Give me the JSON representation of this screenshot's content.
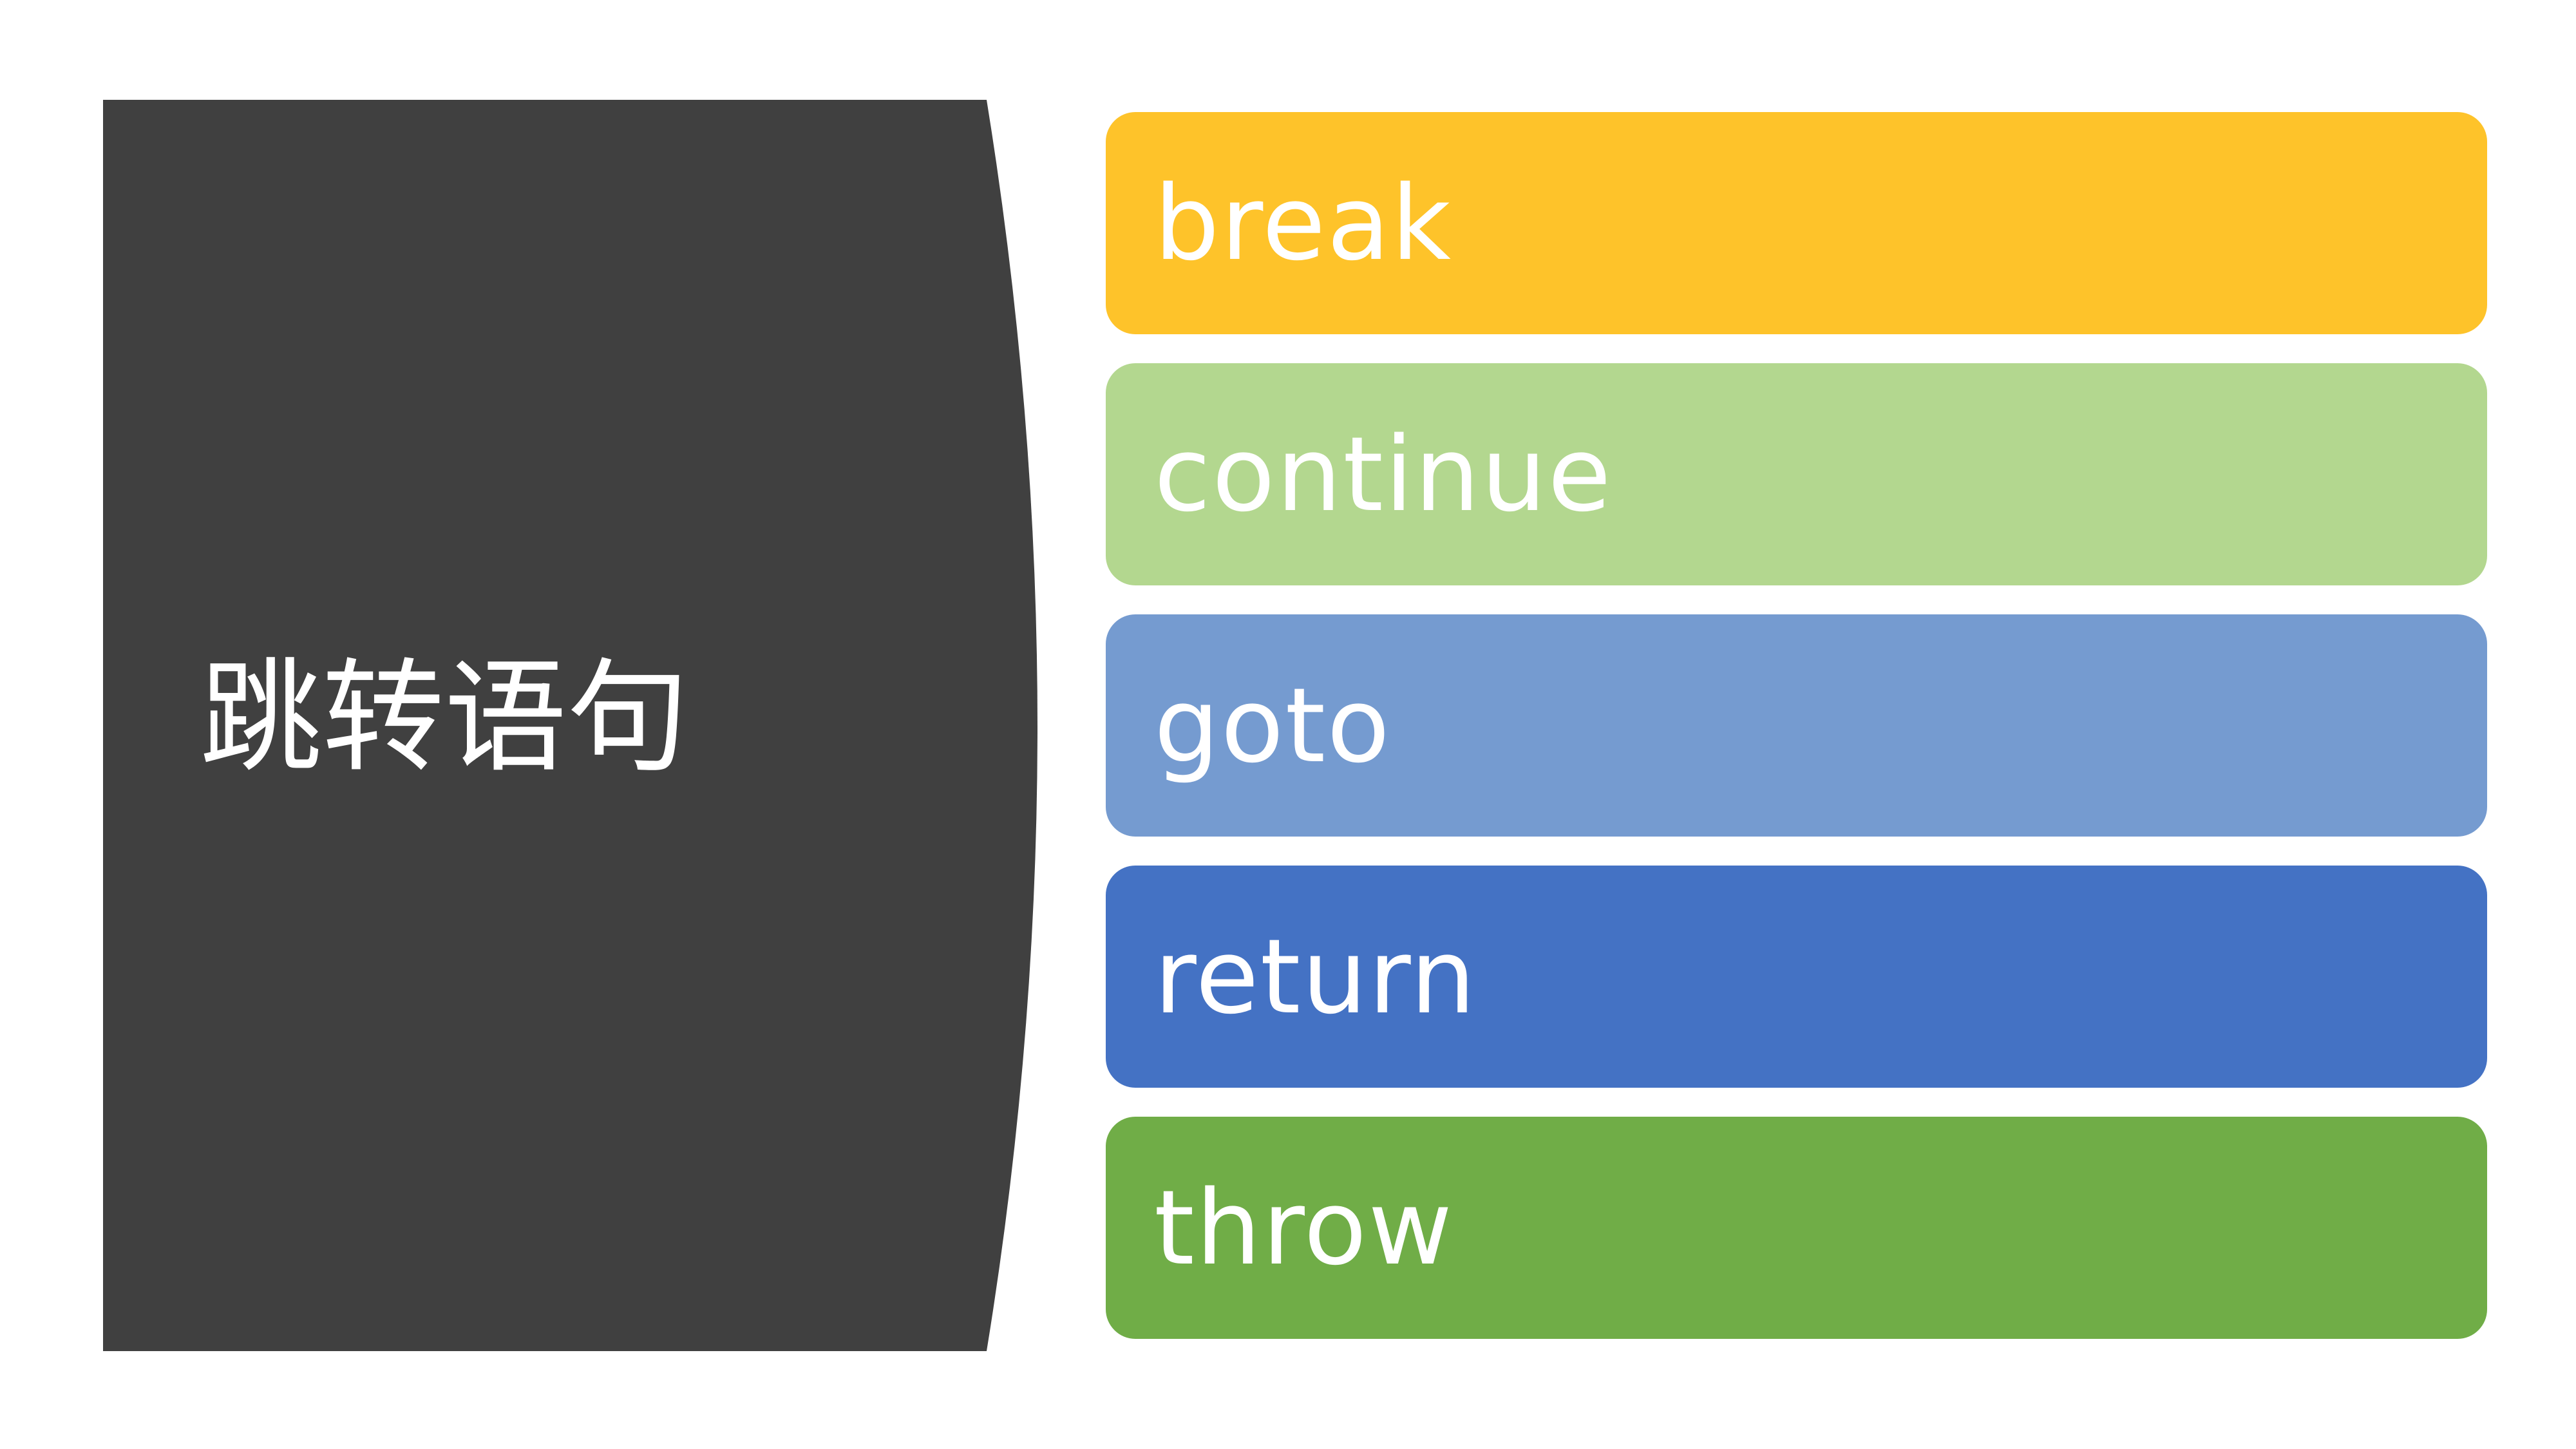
{
  "title": {
    "text": "跳转语句",
    "panel_color": "#404040",
    "text_color": "#ffffff"
  },
  "items": [
    {
      "label": "break",
      "color": "#FEC32A"
    },
    {
      "label": "continue",
      "color": "#B3D78F"
    },
    {
      "label": "goto",
      "color": "#759BD0"
    },
    {
      "label": "return",
      "color": "#4472C4"
    },
    {
      "label": "throw",
      "color": "#70AD47"
    }
  ]
}
